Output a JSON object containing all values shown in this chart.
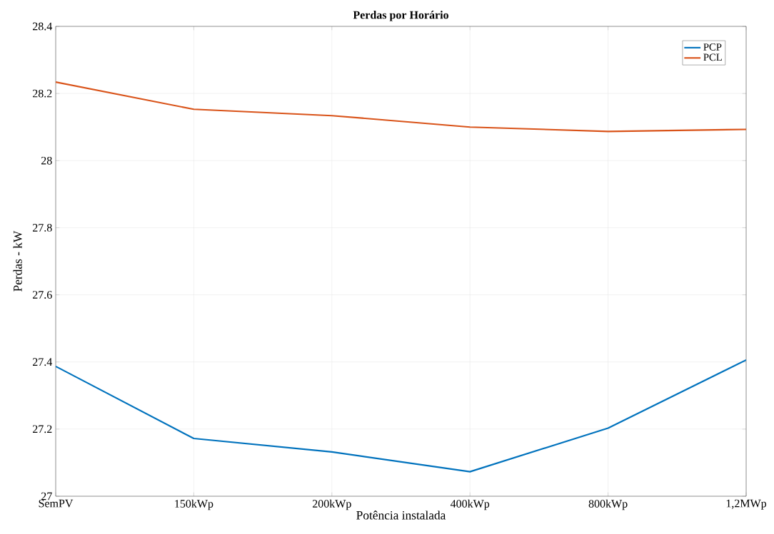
{
  "chart_data": {
    "type": "line",
    "title": "Perdas por Horário",
    "xlabel": "Potência instalada",
    "ylabel": "Perdas - kW",
    "categories": [
      "SemPV",
      "150kWp",
      "200kWp",
      "400kWp",
      "800kWp",
      "1,2MWp"
    ],
    "series": [
      {
        "name": "PCP",
        "color": "#0072bd",
        "values": [
          27.387,
          27.172,
          27.132,
          27.073,
          27.203,
          27.406
        ]
      },
      {
        "name": "PCL",
        "color": "#d95319",
        "values": [
          28.234,
          28.153,
          28.134,
          28.1,
          28.087,
          28.093
        ]
      }
    ],
    "ylim": [
      27,
      28.4
    ],
    "yticks": [
      27,
      27.2,
      27.4,
      27.6,
      27.8,
      28,
      28.2,
      28.4
    ],
    "grid": true,
    "legend": "top right",
    "marker": "none",
    "line_style": "solid"
  }
}
